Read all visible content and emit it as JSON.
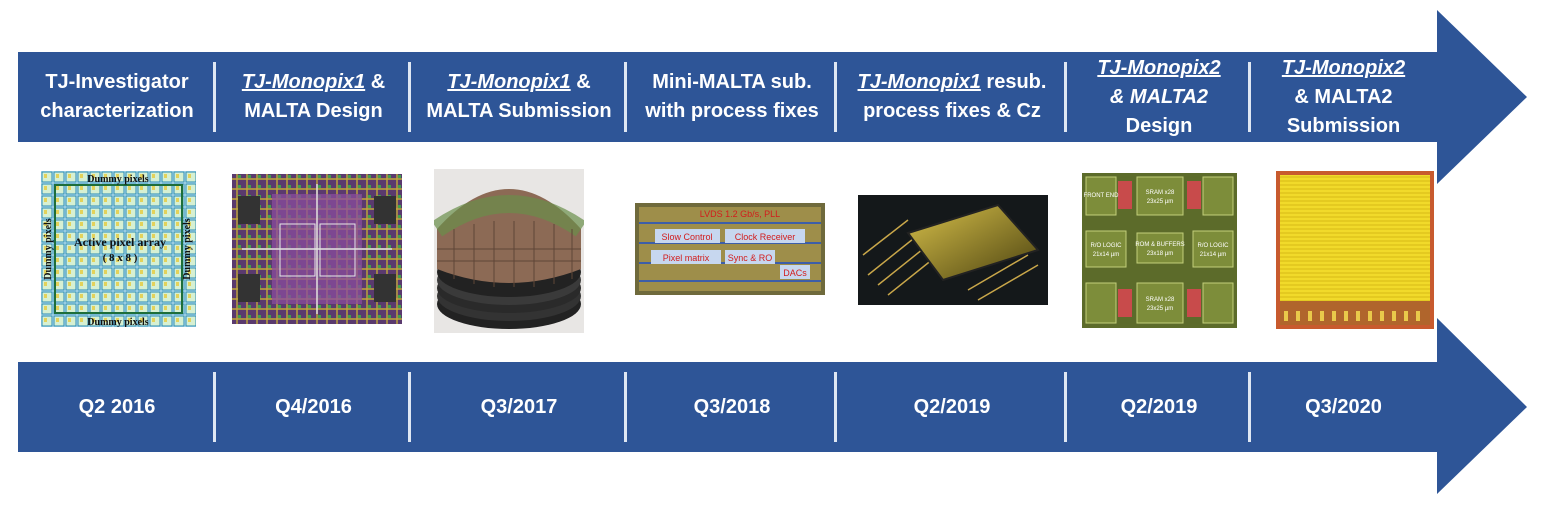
{
  "milestones": [
    {
      "title_lines": [
        "TJ-Investigator",
        "characterization"
      ],
      "date": "Q2 2016",
      "image": "chip-layout-dummy-pixels-image"
    },
    {
      "title_lines": [
        "TJ-Monopix1",
        " &",
        "MALTA Design"
      ],
      "date": "Q4/2016",
      "image": "chip-layout-colored-image"
    },
    {
      "title_lines": [
        "TJ-Monopix1",
        " &",
        "MALTA Submission"
      ],
      "date": "Q3/2017",
      "image": "wafer-stack-image"
    },
    {
      "title_lines": [
        "Mini-MALTA sub.",
        "with process fixes"
      ],
      "date": "Q3/2018",
      "image": "mini-malta-layout-image"
    },
    {
      "title_lines": [
        "TJ-Monopix1",
        " resub.",
        "process fixes & Cz"
      ],
      "date": "Q2/2019",
      "image": "bonded-chip-photo"
    },
    {
      "title_lines": [
        "TJ-Monopix2",
        "& MALTA2",
        "Design"
      ],
      "date": "Q2/2019",
      "image": "malta2-floorplan-image"
    },
    {
      "title_lines": [
        "TJ-Monopix2",
        "& MALTA2",
        "Submission"
      ],
      "date": "Q3/2020",
      "image": "monopix2-layout-image"
    }
  ],
  "image_labels": {
    "dummy_top": "Dummy pixels",
    "dummy_bottom": "Dummy pixels",
    "dummy_left": "Dummy pixels",
    "dummy_right": "Dummy pixels",
    "active_array": "Active pixel array",
    "array_size": "( 8 x 8 )",
    "mm_lvds": "LVDS 1.2 Gb/s, PLL",
    "mm_slow": "Slow Control",
    "mm_clock": "Clock Receiver",
    "mm_pixel": "Pixel matrix",
    "mm_sync": "Sync & RO",
    "mm_dacs": "DACs",
    "fp_sram_top": "SRAM x28",
    "fp_sram_top_size": "23x25 µm",
    "fp_rom": "ROM & BUFFERS",
    "fp_rom_size": "23x18 µm",
    "fp_sram_bot": "SRAM x28",
    "fp_sram_bot_size": "23x25 µm",
    "fp_ro_left": "R/O LOGIC",
    "fp_ro_left_size": "21x14 µm",
    "fp_ro_right": "R/O LOGIC",
    "fp_ro_right_size": "21x14 µm",
    "fp_front": "FRONT END"
  },
  "colors": {
    "band": "#2e5597",
    "separator": "#dfe7f3",
    "text": "#ffffff"
  }
}
